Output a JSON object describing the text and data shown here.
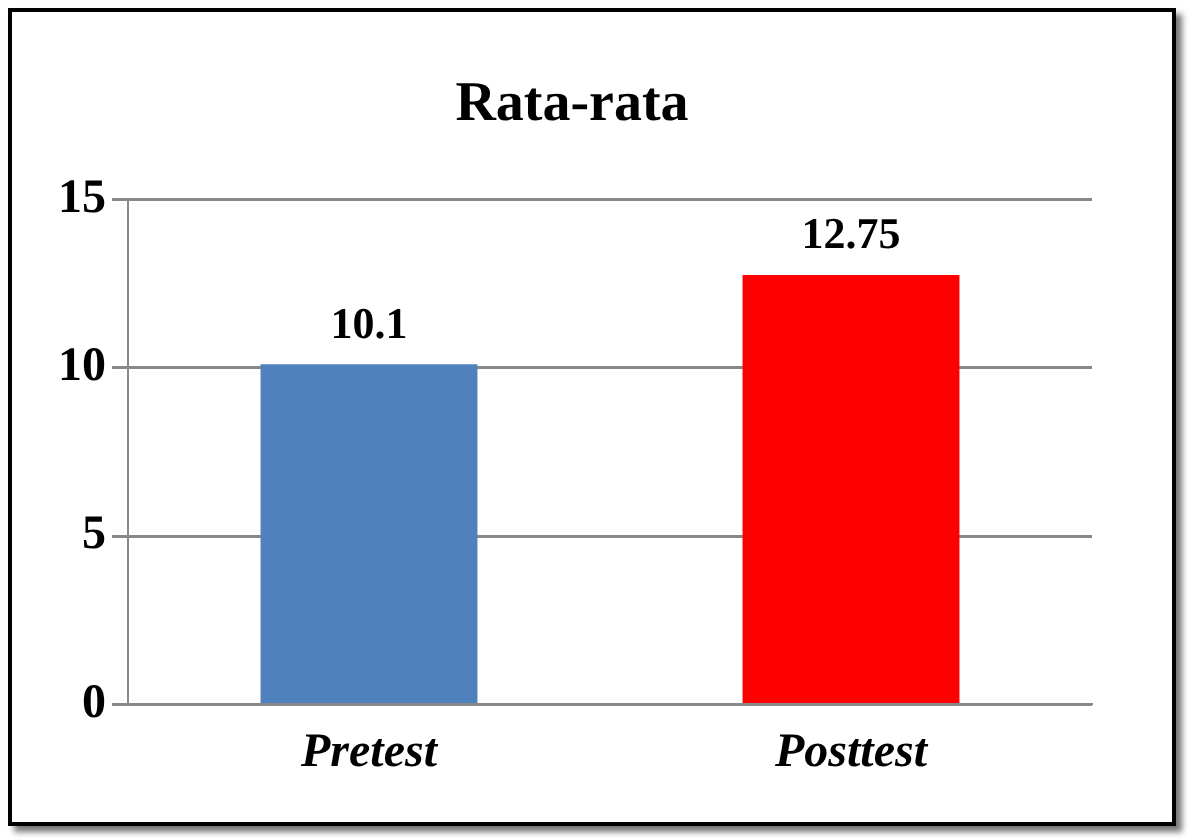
{
  "chart_data": {
    "type": "bar",
    "title": "Rata-rata",
    "categories": [
      "Pretest",
      "Posttest"
    ],
    "values": [
      10.1,
      12.75
    ],
    "colors": [
      "#4f81bd",
      "#ff0000"
    ],
    "ylim": [
      0,
      15
    ],
    "yticks": [
      0,
      5,
      10,
      15
    ],
    "grid": "y",
    "data_labels": true
  }
}
